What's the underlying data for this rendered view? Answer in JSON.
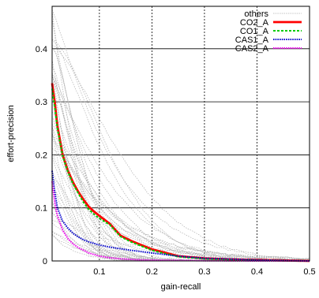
{
  "chart_data": {
    "type": "line",
    "title": "",
    "xlabel": "gain-recall",
    "ylabel": "effort-precision",
    "xlim": [
      0.01,
      0.5
    ],
    "ylim": [
      0,
      0.48
    ],
    "xticks": [
      {
        "v": 0.1,
        "label": "0.1"
      },
      {
        "v": 0.2,
        "label": "0.2"
      },
      {
        "v": 0.3,
        "label": "0.3"
      },
      {
        "v": 0.4,
        "label": "0.4"
      },
      {
        "v": 0.5,
        "label": "0.5"
      }
    ],
    "yticks": [
      {
        "v": 0,
        "label": "0"
      },
      {
        "v": 0.1,
        "label": "0.1"
      },
      {
        "v": 0.2,
        "label": "0.2"
      },
      {
        "v": 0.3,
        "label": "0.3"
      },
      {
        "v": 0.4,
        "label": "0.4"
      }
    ],
    "grid": true,
    "legend_position": "top-right",
    "series": [
      {
        "name": "others",
        "color": "#b0b0b0",
        "dash": "dotted",
        "x": [
          0.01,
          0.03,
          0.06,
          0.1,
          0.15,
          0.2,
          0.3,
          0.4,
          0.5
        ],
        "y": [
          0.3,
          0.22,
          0.15,
          0.09,
          0.05,
          0.03,
          0.012,
          0.004,
          0.001
        ]
      },
      {
        "name": "CO2_A",
        "color": "#ff0000",
        "dash": "solid",
        "x": [
          0.01,
          0.015,
          0.02,
          0.03,
          0.04,
          0.05,
          0.06,
          0.07,
          0.08,
          0.09,
          0.1,
          0.12,
          0.14,
          0.16,
          0.18,
          0.2,
          0.22,
          0.25,
          0.3,
          0.35,
          0.4,
          0.45,
          0.5
        ],
        "y": [
          0.335,
          0.3,
          0.255,
          0.2,
          0.17,
          0.148,
          0.13,
          0.115,
          0.102,
          0.093,
          0.085,
          0.07,
          0.048,
          0.038,
          0.03,
          0.022,
          0.017,
          0.009,
          0.005,
          0.003,
          0.002,
          0.001,
          0.0
        ]
      },
      {
        "name": "CO1_A",
        "color": "#00cc00",
        "dash": "dashed",
        "x": [
          0.01,
          0.015,
          0.02,
          0.03,
          0.04,
          0.05,
          0.06,
          0.07,
          0.08,
          0.09,
          0.1,
          0.12,
          0.14,
          0.16,
          0.18,
          0.2,
          0.22,
          0.25,
          0.3,
          0.35,
          0.4,
          0.45,
          0.5
        ],
        "y": [
          0.325,
          0.29,
          0.25,
          0.198,
          0.168,
          0.145,
          0.127,
          0.11,
          0.097,
          0.088,
          0.08,
          0.068,
          0.046,
          0.036,
          0.028,
          0.02,
          0.015,
          0.008,
          0.004,
          0.002,
          0.001,
          0.0005,
          0.0
        ]
      },
      {
        "name": "CAS1_A",
        "color": "#0000cc",
        "dash": "dotted",
        "x": [
          0.01,
          0.015,
          0.02,
          0.03,
          0.04,
          0.05,
          0.06,
          0.07,
          0.08,
          0.1,
          0.12,
          0.14,
          0.16,
          0.2,
          0.25,
          0.3,
          0.4,
          0.5
        ],
        "y": [
          0.17,
          0.13,
          0.1,
          0.075,
          0.062,
          0.052,
          0.045,
          0.04,
          0.036,
          0.03,
          0.026,
          0.023,
          0.02,
          0.015,
          0.009,
          0.005,
          0.002,
          0.0
        ]
      },
      {
        "name": "CAS2_A",
        "color": "#ee00ee",
        "dash": "dotted",
        "x": [
          0.01,
          0.015,
          0.02,
          0.03,
          0.04,
          0.05,
          0.06,
          0.08,
          0.1,
          0.12,
          0.14,
          0.16,
          0.18,
          0.2,
          0.25,
          0.3,
          0.4,
          0.5
        ],
        "y": [
          0.15,
          0.11,
          0.085,
          0.058,
          0.042,
          0.032,
          0.025,
          0.015,
          0.009,
          0.006,
          0.004,
          0.003,
          0.002,
          0.0015,
          0.001,
          0.0005,
          0.0,
          0.0
        ]
      }
    ]
  }
}
